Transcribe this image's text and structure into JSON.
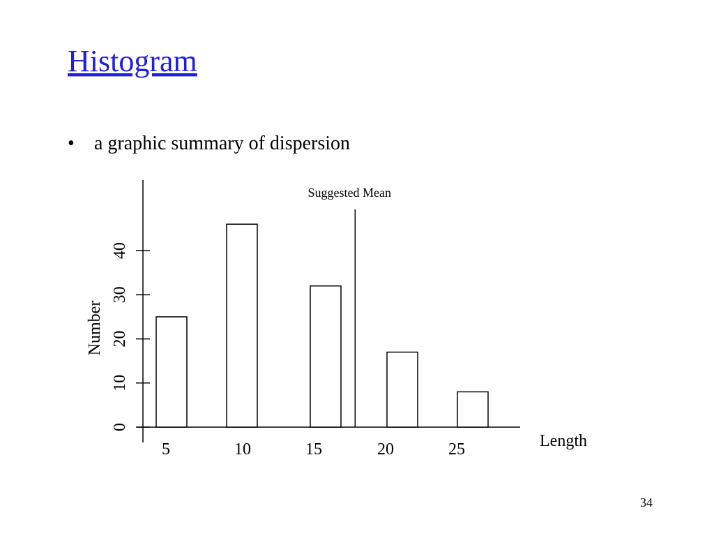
{
  "slide": {
    "title": "Histogram",
    "bullet": "a graphic summary of dispersion",
    "page_number": "34"
  },
  "chart_data": {
    "type": "bar",
    "categories": [
      "5",
      "10",
      "15",
      "20",
      "25"
    ],
    "values": [
      25,
      46,
      32,
      17,
      8
    ],
    "color": "#ffffff",
    "ylim": [
      0,
      56
    ],
    "yticks": [
      0,
      10,
      20,
      30,
      40
    ],
    "ylabel": "Number",
    "xlabel": "Length",
    "annotation": {
      "text": "Suggested Mean",
      "x": 18
    },
    "grid": false
  }
}
